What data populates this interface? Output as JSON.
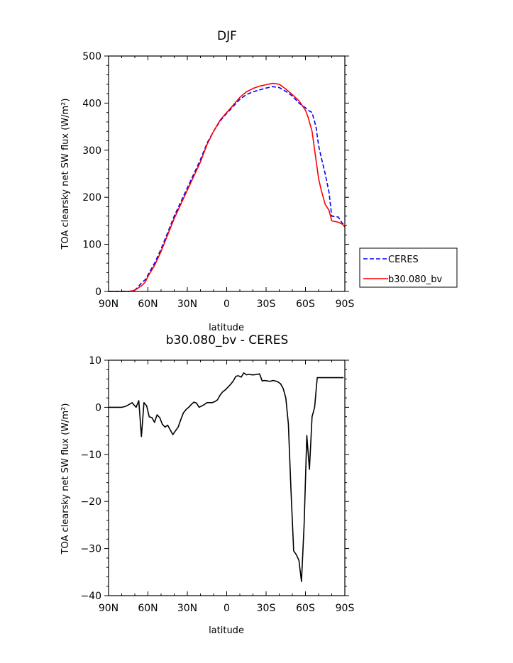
{
  "chart_data": [
    {
      "type": "line",
      "title": "DJF",
      "xlabel": "latitude",
      "ylabel": "TOA clearsky net SW flux (W/m²)",
      "xlim": [
        90,
        -90
      ],
      "ylim": [
        0,
        500
      ],
      "x_ticks": [
        {
          "value": 90,
          "label": "90N"
        },
        {
          "value": 60,
          "label": "60N"
        },
        {
          "value": 30,
          "label": "30N"
        },
        {
          "value": 0,
          "label": "0"
        },
        {
          "value": -30,
          "label": "30S"
        },
        {
          "value": -60,
          "label": "60S"
        },
        {
          "value": -90,
          "label": "90S"
        }
      ],
      "y_ticks": [
        {
          "value": 0,
          "label": "0"
        },
        {
          "value": 100,
          "label": "100"
        },
        {
          "value": 200,
          "label": "200"
        },
        {
          "value": 300,
          "label": "300"
        },
        {
          "value": 400,
          "label": "400"
        },
        {
          "value": 500,
          "label": "500"
        }
      ],
      "legend_position": "right",
      "series": [
        {
          "name": "CERES",
          "color": "#0000ff",
          "dash": "dashed",
          "x": [
            90,
            80,
            75,
            72,
            70,
            68,
            65,
            62,
            60,
            55,
            50,
            45,
            40,
            35,
            30,
            25,
            20,
            15,
            10,
            5,
            0,
            -5,
            -10,
            -15,
            -20,
            -25,
            -30,
            -35,
            -40,
            -45,
            -50,
            -55,
            -60,
            -62,
            -65,
            -68,
            -70,
            -72,
            -75,
            -78,
            -80,
            -85,
            -88,
            -90
          ],
          "y": [
            0,
            0,
            0,
            1,
            3,
            8,
            18,
            25,
            35,
            60,
            90,
            125,
            160,
            190,
            220,
            250,
            280,
            315,
            340,
            362,
            378,
            393,
            408,
            418,
            424,
            428,
            432,
            435,
            433,
            425,
            415,
            400,
            390,
            385,
            380,
            350,
            310,
            285,
            250,
            210,
            160,
            158,
            145,
            140
          ]
        },
        {
          "name": "b30.080_bv",
          "color": "#ff0000",
          "dash": "solid",
          "x": [
            90,
            80,
            75,
            72,
            70,
            68,
            65,
            62,
            60,
            55,
            50,
            45,
            40,
            35,
            30,
            25,
            20,
            15,
            10,
            5,
            0,
            -5,
            -10,
            -15,
            -20,
            -25,
            -30,
            -35,
            -40,
            -45,
            -50,
            -55,
            -60,
            -62,
            -65,
            -68,
            -70,
            -72,
            -75,
            -78,
            -80,
            -85,
            -88,
            -90
          ],
          "y": [
            0,
            0,
            0,
            1,
            3,
            6,
            12,
            20,
            32,
            55,
            85,
            120,
            155,
            185,
            215,
            245,
            275,
            312,
            340,
            364,
            380,
            396,
            412,
            424,
            431,
            436,
            439,
            442,
            440,
            430,
            418,
            405,
            385,
            370,
            340,
            280,
            240,
            215,
            185,
            172,
            150,
            147,
            143,
            137
          ]
        }
      ]
    },
    {
      "type": "line",
      "title": "b30.080_bv - CERES",
      "xlabel": "latitude",
      "ylabel": "TOA clearsky net SW flux (W/m²)",
      "xlim": [
        90,
        -90
      ],
      "ylim": [
        -40,
        10
      ],
      "x_ticks": [
        {
          "value": 90,
          "label": "90N"
        },
        {
          "value": 60,
          "label": "60N"
        },
        {
          "value": 30,
          "label": "30N"
        },
        {
          "value": 0,
          "label": "0"
        },
        {
          "value": -30,
          "label": "30S"
        },
        {
          "value": -60,
          "label": "60S"
        },
        {
          "value": -90,
          "label": "90S"
        }
      ],
      "y_ticks": [
        {
          "value": -40,
          "label": "−40"
        },
        {
          "value": -30,
          "label": "−30"
        },
        {
          "value": -20,
          "label": "−20"
        },
        {
          "value": -10,
          "label": "−10"
        },
        {
          "value": 0,
          "label": "0"
        },
        {
          "value": 10,
          "label": "10"
        }
      ],
      "series": [
        {
          "color": "#000000",
          "x": [
            90,
            85,
            80,
            77,
            75,
            72,
            71,
            69,
            67,
            65,
            63,
            61,
            59,
            57,
            55,
            53,
            51,
            49,
            47,
            45,
            43,
            41,
            39,
            37,
            35,
            33,
            31,
            29,
            27,
            25,
            23,
            21,
            19,
            17,
            15,
            13,
            11,
            9,
            7,
            5,
            3,
            1,
            -1,
            -3,
            -5,
            -7,
            -9,
            -11,
            -13,
            -15,
            -17,
            -19,
            -21,
            -23,
            -25,
            -27,
            -29,
            -31,
            -33,
            -35,
            -37,
            -39,
            -41,
            -43,
            -45,
            -47,
            -49,
            -51,
            -53,
            -55,
            -57,
            -59,
            -61,
            -63,
            -65,
            -67,
            -69,
            -71,
            -73,
            -75,
            -77,
            -79,
            -81,
            -83,
            -85,
            -87,
            -89
          ],
          "y": [
            0,
            0,
            0,
            0.2,
            0.5,
            1,
            0.6,
            0,
            1.4,
            -6.2,
            1,
            0.3,
            -2,
            -2.2,
            -3.2,
            -1.6,
            -2.2,
            -3.6,
            -4.2,
            -3.8,
            -4.8,
            -5.8,
            -5,
            -4.2,
            -2.6,
            -1.2,
            -0.5,
            0,
            0.6,
            1.1,
            0.9,
            0,
            0.3,
            0.6,
            1,
            1,
            1,
            1.2,
            1.6,
            2.6,
            3.3,
            3.7,
            4.3,
            4.9,
            5.6,
            6.6,
            6.7,
            6.4,
            7.3,
            6.9,
            7,
            6.9,
            6.9,
            7,
            7.1,
            5.6,
            5.7,
            5.6,
            5.5,
            5.7,
            5.6,
            5.4,
            5,
            4,
            2,
            -3.5,
            -18,
            -30.5,
            -31.3,
            -32.5,
            -37,
            -25,
            -6,
            -13.2,
            -2,
            0,
            6.3,
            6.3,
            6.3,
            6.3,
            6.3,
            6.3,
            6.3,
            6.3,
            6.3,
            6.3,
            6.3
          ]
        }
      ]
    }
  ]
}
